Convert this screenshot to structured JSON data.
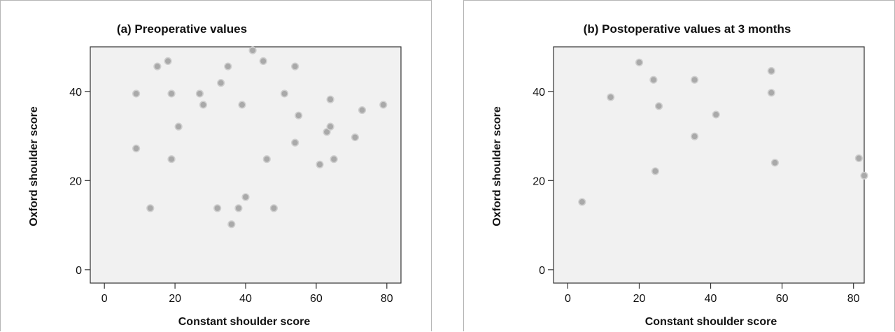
{
  "chart_data": [
    {
      "type": "scatter",
      "title": "(a) Preoperative values",
      "xlabel": "Constant shoulder score",
      "ylabel": "Oxford shoulder score",
      "xlim": [
        -4,
        84
      ],
      "ylim": [
        -3,
        50
      ],
      "xticks": [
        0,
        20,
        40,
        60,
        80
      ],
      "yticks": [
        0,
        20,
        40
      ],
      "grid": false,
      "legend": "none",
      "points": [
        {
          "x": 9,
          "y": 39.5
        },
        {
          "x": 9,
          "y": 27.2
        },
        {
          "x": 13,
          "y": 13.8
        },
        {
          "x": 15,
          "y": 45.6
        },
        {
          "x": 18,
          "y": 46.8
        },
        {
          "x": 19,
          "y": 39.5
        },
        {
          "x": 19,
          "y": 24.8
        },
        {
          "x": 21,
          "y": 32.1
        },
        {
          "x": 27,
          "y": 39.5
        },
        {
          "x": 28,
          "y": 37.0
        },
        {
          "x": 32,
          "y": 13.8
        },
        {
          "x": 33,
          "y": 41.9
        },
        {
          "x": 35,
          "y": 45.6
        },
        {
          "x": 36,
          "y": 10.2
        },
        {
          "x": 38,
          "y": 13.8
        },
        {
          "x": 39,
          "y": 37.0
        },
        {
          "x": 40,
          "y": 16.3
        },
        {
          "x": 42,
          "y": 49.2
        },
        {
          "x": 45,
          "y": 46.8
        },
        {
          "x": 46,
          "y": 24.8
        },
        {
          "x": 48,
          "y": 13.8
        },
        {
          "x": 51,
          "y": 39.5
        },
        {
          "x": 54,
          "y": 45.6
        },
        {
          "x": 54,
          "y": 28.5
        },
        {
          "x": 55,
          "y": 34.6
        },
        {
          "x": 61,
          "y": 23.6
        },
        {
          "x": 63,
          "y": 30.9
        },
        {
          "x": 64,
          "y": 38.2
        },
        {
          "x": 64,
          "y": 32.1
        },
        {
          "x": 65,
          "y": 24.8
        },
        {
          "x": 71,
          "y": 29.7
        },
        {
          "x": 73,
          "y": 35.8
        },
        {
          "x": 79,
          "y": 37.0
        }
      ]
    },
    {
      "type": "scatter",
      "title": "(b) Postoperative values at 3 months",
      "xlabel": "Constant shoulder score",
      "ylabel": "Oxford shoulder score",
      "xlim": [
        -4,
        83
      ],
      "ylim": [
        -3,
        50
      ],
      "xticks": [
        0,
        20,
        40,
        60,
        80
      ],
      "yticks": [
        0,
        20,
        40
      ],
      "grid": false,
      "legend": "none",
      "points": [
        {
          "x": 4,
          "y": 15.2
        },
        {
          "x": 12,
          "y": 38.7
        },
        {
          "x": 20,
          "y": 46.5
        },
        {
          "x": 24,
          "y": 42.6
        },
        {
          "x": 24.5,
          "y": 22.1
        },
        {
          "x": 25.5,
          "y": 36.7
        },
        {
          "x": 35.5,
          "y": 42.6
        },
        {
          "x": 35.5,
          "y": 29.9
        },
        {
          "x": 41.5,
          "y": 34.8
        },
        {
          "x": 57,
          "y": 44.6
        },
        {
          "x": 57,
          "y": 39.7
        },
        {
          "x": 58,
          "y": 24.0
        },
        {
          "x": 81.5,
          "y": 25.0
        },
        {
          "x": 83,
          "y": 21.1
        }
      ]
    }
  ]
}
